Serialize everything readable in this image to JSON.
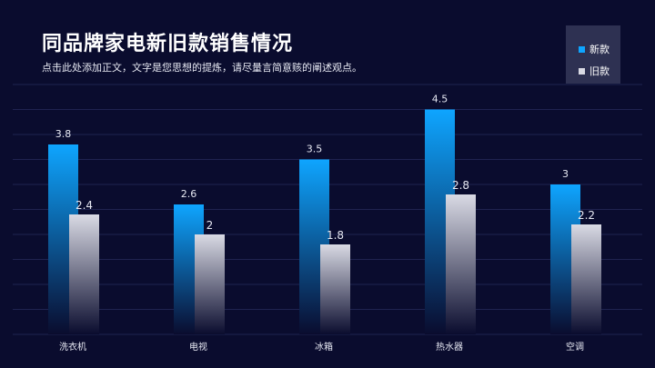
{
  "header": {
    "title": "同品牌家电新旧款销售情况",
    "subtitle": "点击此处添加正文，文字是您思想的提炼，请尽量言简意赅的阐述观点。"
  },
  "colors": {
    "background": "#0a0c2e",
    "new_top": "#0ea5ff",
    "new_bottom": "#0a0c2e",
    "old_top": "#d9dae4",
    "old_bottom": "#0a0c2e",
    "legend_bg": "#2e3152"
  },
  "chart_data": {
    "type": "bar",
    "categories": [
      "洗衣机",
      "电视",
      "冰箱",
      "热水器",
      "空调"
    ],
    "series": [
      {
        "name": "新款",
        "values": [
          3.8,
          2.6,
          3.5,
          4.5,
          3
        ]
      },
      {
        "name": "旧款",
        "values": [
          2.4,
          2,
          1.8,
          2.8,
          2.2
        ]
      }
    ],
    "ylim": [
      0,
      5
    ],
    "grid": true,
    "legend_position": "top-right",
    "xlabel": "",
    "ylabel": ""
  }
}
